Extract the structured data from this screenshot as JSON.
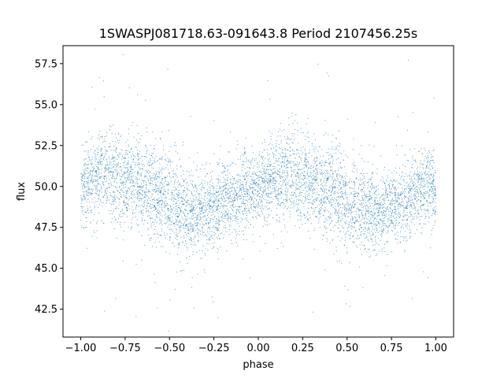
{
  "chart_data": {
    "type": "scatter",
    "title": "1SWASPJ081718.63-091643.8 Period 2107456.25s",
    "xlabel": "phase",
    "ylabel": "flux",
    "xlim": [
      -1.1,
      1.1
    ],
    "ylim": [
      40.8,
      58.6
    ],
    "x_ticks": [
      -1.0,
      -0.75,
      -0.5,
      -0.25,
      0.0,
      0.25,
      0.5,
      0.75,
      1.0
    ],
    "x_tick_labels": [
      "−1.00",
      "−0.75",
      "−0.50",
      "−0.25",
      "0.00",
      "0.25",
      "0.50",
      "0.75",
      "1.00"
    ],
    "y_ticks": [
      42.5,
      45.0,
      47.5,
      50.0,
      52.5,
      55.0,
      57.5
    ],
    "y_tick_labels": [
      "42.5",
      "45.0",
      "47.5",
      "50.0",
      "52.5",
      "55.0",
      "57.5"
    ],
    "grid": false,
    "legend": "none",
    "marker_color": "#1f77b4",
    "series": [
      {
        "x": [
          -1.0,
          -0.95,
          -0.9,
          -0.85,
          -0.8,
          -0.75,
          -0.7,
          -0.65,
          -0.6,
          -0.55,
          -0.5,
          -0.45,
          -0.4,
          -0.35,
          -0.3,
          -0.25,
          -0.2,
          -0.15,
          -0.1,
          -0.05,
          0.0,
          0.05,
          0.1,
          0.15,
          0.2,
          0.25,
          0.3,
          0.35,
          0.4,
          0.45,
          0.5,
          0.55,
          0.6,
          0.65,
          0.7,
          0.75,
          0.8,
          0.85,
          0.9,
          0.95,
          1.0
        ],
        "y": [
          49.8,
          50.3,
          50.5,
          50.6,
          50.7,
          50.4,
          50.3,
          50.0,
          49.9,
          49.4,
          49.0,
          48.7,
          48.5,
          48.4,
          48.5,
          48.8,
          49.0,
          49.3,
          49.6,
          49.9,
          49.8,
          50.3,
          50.5,
          50.6,
          50.7,
          50.4,
          50.3,
          50.0,
          49.9,
          49.4,
          49.0,
          48.7,
          48.5,
          48.4,
          48.5,
          48.8,
          49.0,
          49.3,
          49.6,
          49.9,
          49.8
        ],
        "spread": [
          1.1,
          1.2,
          1.3,
          1.4,
          1.5,
          1.4,
          1.3,
          1.3,
          1.4,
          1.5,
          1.5,
          1.4,
          1.3,
          1.2,
          1.2,
          1.2,
          1.2,
          1.2,
          1.1,
          1.1,
          1.1,
          1.2,
          1.3,
          1.4,
          1.5,
          1.4,
          1.3,
          1.3,
          1.4,
          1.5,
          1.5,
          1.4,
          1.3,
          1.2,
          1.2,
          1.2,
          1.2,
          1.2,
          1.1,
          1.1,
          1.1
        ],
        "observations_per_phase_unit": 5000
      }
    ]
  }
}
